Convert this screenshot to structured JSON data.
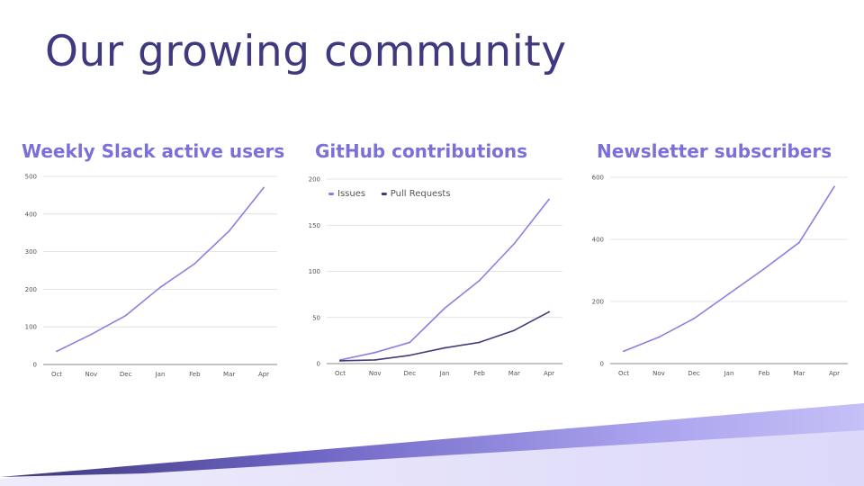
{
  "slide": {
    "title": "Our growing community"
  },
  "colors": {
    "title": "#3f3a7f",
    "chart_title": "#7b6fd9",
    "line_light": "#8b80e0",
    "line_dark": "#433a7c",
    "grid": "#dcdcdc"
  },
  "chart_data": [
    {
      "type": "line",
      "title": "Weekly Slack active users",
      "categories": [
        "Oct",
        "Nov",
        "Dec",
        "Jan",
        "Feb",
        "Mar",
        "Apr"
      ],
      "series": [
        {
          "name": "",
          "values": [
            35,
            80,
            130,
            205,
            268,
            355,
            470
          ]
        }
      ],
      "ylim": [
        0,
        500
      ],
      "yticks": [
        0,
        100,
        200,
        300,
        400,
        500
      ],
      "grid": true,
      "legend": false
    },
    {
      "type": "line",
      "title": "GitHub contributions",
      "categories": [
        "Oct",
        "Nov",
        "Dec",
        "Jan",
        "Feb",
        "Mar",
        "Apr"
      ],
      "series": [
        {
          "name": "Issues",
          "values": [
            4,
            12,
            23,
            60,
            90,
            130,
            178
          ]
        },
        {
          "name": "Pull Requests",
          "values": [
            3,
            4,
            9,
            17,
            23,
            36,
            56
          ]
        }
      ],
      "ylim": [
        0,
        200
      ],
      "yticks": [
        0,
        50,
        100,
        150,
        200
      ],
      "grid": true,
      "legend": "top-left"
    },
    {
      "type": "line",
      "title": "Newsletter subscribers",
      "categories": [
        "Oct",
        "Nov",
        "Dec",
        "Jan",
        "Feb",
        "Mar",
        "Apr"
      ],
      "series": [
        {
          "name": "",
          "values": [
            40,
            85,
            145,
            225,
            305,
            390,
            570
          ]
        }
      ],
      "ylim": [
        0,
        600
      ],
      "yticks": [
        0,
        200,
        400,
        600
      ],
      "grid": true,
      "legend": false
    }
  ]
}
